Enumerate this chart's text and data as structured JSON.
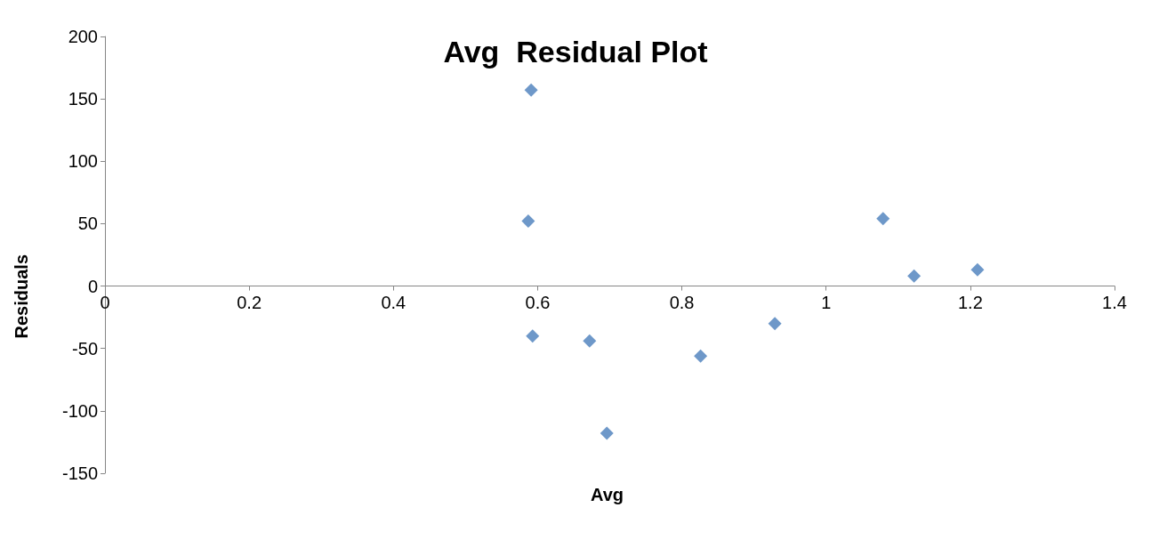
{
  "chart_data": {
    "type": "scatter",
    "title": "Avg  Residual Plot",
    "xlabel": "Avg",
    "ylabel": "Residuals",
    "x": [
      0.591,
      0.587,
      0.593,
      0.672,
      0.696,
      0.826,
      0.929,
      1.079,
      1.122,
      1.21
    ],
    "values": [
      157,
      52,
      -40,
      -44,
      -118,
      -56,
      -30,
      54,
      8,
      13
    ],
    "xlim": [
      0,
      1.4
    ],
    "xticks": [
      0,
      0.2,
      0.4,
      0.6,
      0.8,
      1,
      1.2,
      1.4
    ],
    "ylim": [
      -150,
      200
    ],
    "yticks": [
      -150,
      -100,
      -50,
      0,
      50,
      100,
      150,
      200
    ],
    "color": "#4a7ebb",
    "marker": "diamond"
  }
}
